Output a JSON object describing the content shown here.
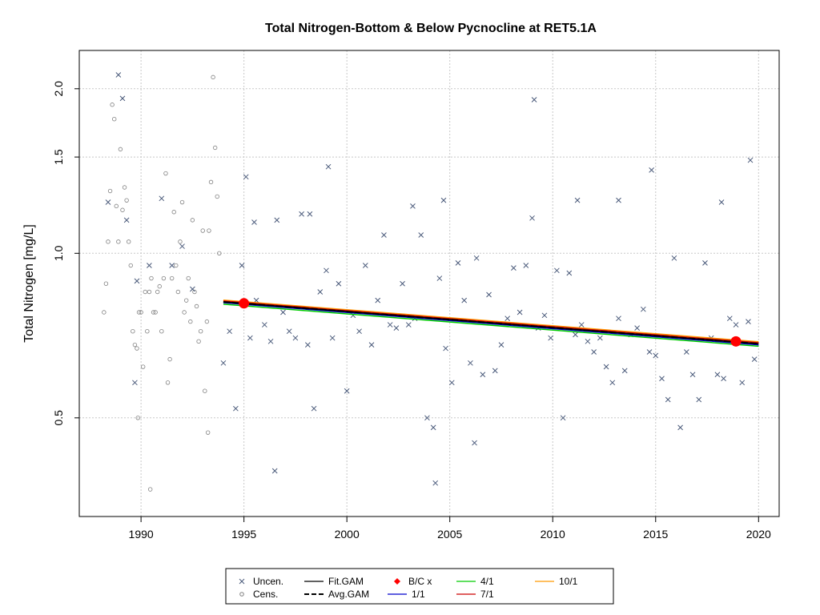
{
  "chart_data": {
    "type": "scatter",
    "title": "Total Nitrogen-Bottom & Below Pycnocline at RET5.1A",
    "xlabel": "",
    "ylabel": "Total Nitrogen [mg/L]",
    "y_scale": "log",
    "xlim": [
      1987.0,
      2021.0
    ],
    "ylim": [
      0.33,
      2.35
    ],
    "x_ticks": [
      1990,
      1995,
      2000,
      2005,
      2010,
      2015,
      2020
    ],
    "y_ticks": [
      0.5,
      1.0,
      1.5,
      2.0
    ],
    "y_tick_labels": [
      "0.5",
      "1.0",
      "1.5",
      "2.0"
    ],
    "grid": true,
    "legend_position": "bottom-center",
    "legend": [
      {
        "label": "Uncen.",
        "symbol": "x",
        "color": "#4a5a7a"
      },
      {
        "label": "Cens.",
        "symbol": "circle",
        "color": "#808080"
      },
      {
        "label": "Fit.GAM",
        "symbol": "line",
        "color": "#000000"
      },
      {
        "label": "Avg.GAM",
        "symbol": "dashed-line",
        "color": "#000000"
      },
      {
        "label": "B/C x",
        "symbol": "diamond",
        "color": "#ff0000"
      },
      {
        "label": "1/1",
        "symbol": "line",
        "color": "#0000cc"
      },
      {
        "label": "4/1",
        "symbol": "line",
        "color": "#00cc00"
      },
      {
        "label": "7/1",
        "symbol": "line",
        "color": "#cc0000"
      },
      {
        "label": "10/1",
        "symbol": "line",
        "color": "#ff9900"
      }
    ],
    "series": [
      {
        "name": "Fit.GAM",
        "color": "#000000",
        "x": [
          1994.0,
          2020.0
        ],
        "y": [
          0.815,
          0.683
        ]
      },
      {
        "name": "Avg.GAM",
        "color": "#000000",
        "x": [
          1994.0,
          2020.0
        ],
        "y": [
          0.815,
          0.683
        ]
      },
      {
        "name": "1/1",
        "color": "#0000cc",
        "x": [
          1994.0,
          2020.0
        ],
        "y": [
          0.812,
          0.68
        ]
      },
      {
        "name": "4/1",
        "color": "#00cc00",
        "x": [
          1994.0,
          2020.0
        ],
        "y": [
          0.807,
          0.676
        ]
      },
      {
        "name": "7/1",
        "color": "#cc0000",
        "x": [
          1994.0,
          2020.0
        ],
        "y": [
          0.818,
          0.686
        ]
      },
      {
        "name": "10/1",
        "color": "#ff9900",
        "x": [
          1994.0,
          2020.0
        ],
        "y": [
          0.821,
          0.689
        ]
      },
      {
        "name": "B/C x",
        "color": "#ff0000",
        "x": [
          1995.0,
          2018.9
        ],
        "y": [
          0.81,
          0.69
        ]
      }
    ],
    "censored": {
      "color": "#808080",
      "x": [
        1988.3,
        1988.4,
        1988.6,
        1988.7,
        1988.8,
        1988.9,
        1989.0,
        1989.2,
        1989.4,
        1989.6,
        1989.7,
        1989.8,
        1989.9,
        1990.0,
        1990.2,
        1990.4,
        1990.6,
        1990.8,
        1991.0,
        1991.2,
        1991.4,
        1991.6,
        1991.8,
        1992.0,
        1992.2,
        1992.4,
        1992.6,
        1992.8,
        1993.0,
        1993.2,
        1993.3,
        1993.4,
        1993.5,
        1993.6,
        1993.7,
        1993.8,
        1990.1,
        1990.3,
        1990.5,
        1990.7,
        1990.9,
        1991.1,
        1991.3,
        1991.5,
        1991.7,
        1991.9,
        1992.1,
        1992.3,
        1992.5,
        1992.7,
        1992.9,
        1993.1,
        1989.1,
        1989.3,
        1989.5,
        1988.5,
        1988.2,
        1989.85,
        1990.45,
        1993.25
      ],
      "y": [
        0.88,
        1.05,
        1.87,
        1.76,
        1.22,
        1.05,
        1.55,
        1.32,
        1.05,
        0.72,
        0.68,
        0.67,
        0.78,
        0.78,
        0.85,
        0.85,
        0.78,
        0.85,
        0.72,
        1.4,
        0.64,
        1.19,
        0.85,
        1.24,
        0.82,
        0.75,
        0.85,
        0.69,
        1.1,
        0.75,
        1.1,
        1.35,
        2.1,
        1.56,
        1.27,
        1.0,
        0.62,
        0.72,
        0.9,
        0.78,
        0.87,
        0.9,
        0.58,
        0.9,
        0.95,
        1.05,
        0.78,
        0.9,
        1.15,
        0.8,
        0.72,
        0.56,
        1.2,
        1.25,
        0.95,
        1.3,
        0.78,
        0.5,
        0.37,
        0.47
      ]
    },
    "uncensored": {
      "color": "#4a5a7a",
      "x": [
        1988.4,
        1988.9,
        1989.1,
        1989.3,
        1989.7,
        1989.8,
        1990.4,
        1991.0,
        1991.5,
        1992.0,
        1992.5,
        1994.0,
        1994.3,
        1994.6,
        1994.9,
        1995.1,
        1995.3,
        1995.6,
        1996.0,
        1996.3,
        1996.6,
        1996.9,
        1997.2,
        1997.5,
        1997.8,
        1998.1,
        1998.4,
        1998.7,
        1999.0,
        1999.3,
        1999.6,
        2000.0,
        2000.3,
        2000.6,
        2000.9,
        2001.2,
        2001.5,
        2001.8,
        2002.1,
        2002.4,
        2002.7,
        2003.0,
        2003.3,
        2003.6,
        2003.9,
        2004.2,
        2004.5,
        2004.8,
        2005.1,
        2005.4,
        2005.7,
        2006.0,
        2006.3,
        2006.6,
        2006.9,
        2007.2,
        2007.5,
        2007.8,
        2008.1,
        2008.4,
        2008.7,
        2009.0,
        2009.3,
        2009.6,
        2009.9,
        2010.2,
        2010.5,
        2010.8,
        2011.1,
        2011.4,
        2011.7,
        2012.0,
        2012.3,
        2012.6,
        2012.9,
        2013.2,
        2013.5,
        2013.8,
        2014.1,
        2014.4,
        2014.7,
        2015.0,
        2015.3,
        2015.6,
        2015.9,
        2016.2,
        2016.5,
        2016.8,
        2017.1,
        2017.4,
        2017.7,
        2018.0,
        2018.3,
        2018.6,
        2018.9,
        2019.2,
        2019.5,
        2019.8,
        1995.5,
        1996.5,
        1998.2,
        1999.1,
        2003.2,
        2004.3,
        2004.7,
        2006.2,
        2009.1,
        2014.8,
        2019.6,
        2011.2,
        2013.2,
        2018.2
      ],
      "y": [
        1.24,
        2.12,
        1.92,
        1.15,
        0.58,
        0.89,
        0.95,
        1.26,
        0.95,
        1.03,
        0.86,
        0.63,
        0.72,
        0.52,
        0.95,
        1.38,
        0.7,
        0.82,
        0.74,
        0.69,
        1.15,
        0.78,
        0.72,
        0.7,
        1.18,
        0.68,
        0.52,
        0.85,
        0.93,
        0.7,
        0.88,
        0.56,
        0.77,
        0.72,
        0.95,
        0.68,
        0.82,
        1.08,
        0.74,
        0.73,
        0.88,
        0.74,
        0.76,
        1.08,
        0.5,
        0.48,
        0.9,
        0.67,
        0.58,
        0.96,
        0.82,
        0.63,
        0.98,
        0.6,
        0.84,
        0.61,
        0.68,
        0.76,
        0.94,
        0.78,
        0.95,
        1.16,
        0.73,
        0.77,
        0.7,
        0.93,
        0.5,
        0.92,
        0.71,
        0.74,
        0.69,
        0.66,
        0.7,
        0.62,
        0.58,
        0.76,
        0.61,
        0.71,
        0.73,
        0.79,
        0.66,
        0.65,
        0.59,
        0.54,
        0.98,
        0.48,
        0.66,
        0.6,
        0.54,
        0.96,
        0.7,
        0.6,
        0.59,
        0.76,
        0.74,
        0.58,
        0.75,
        0.64,
        1.14,
        0.4,
        1.18,
        1.44,
        1.22,
        0.38,
        1.25,
        0.45,
        1.91,
        1.42,
        1.48,
        1.25,
        1.25,
        1.24
      ]
    }
  }
}
